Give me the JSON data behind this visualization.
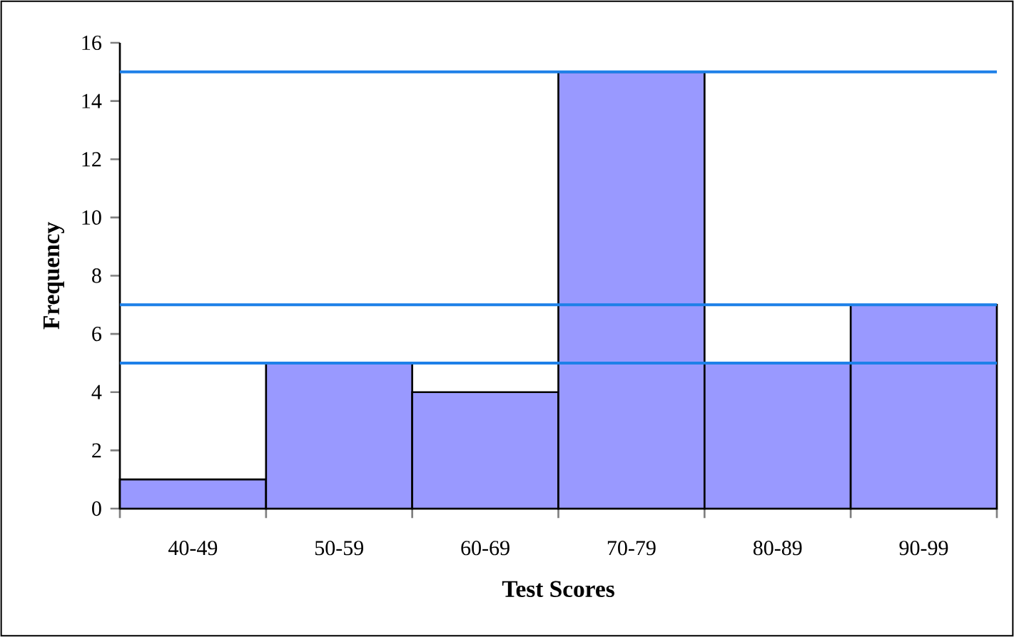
{
  "chart_data": {
    "type": "bar",
    "xlabel": "Test Scores",
    "ylabel": "Frequency",
    "categories": [
      "40-49",
      "50-59",
      "60-69",
      "70-79",
      "80-89",
      "90-99"
    ],
    "values": [
      1,
      5,
      4,
      15,
      5,
      7
    ],
    "color": "#9999ff",
    "ylim": [
      0,
      16
    ],
    "yticks": [
      0,
      2,
      4,
      6,
      8,
      10,
      12,
      14,
      16
    ],
    "grid": false,
    "ref_lines": [
      {
        "axis": "y",
        "value": 15,
        "color": "#1e80e8"
      },
      {
        "axis": "y",
        "value": 7,
        "color": "#1e80e8"
      },
      {
        "axis": "y",
        "value": 5,
        "color": "#1e80e8"
      }
    ]
  }
}
